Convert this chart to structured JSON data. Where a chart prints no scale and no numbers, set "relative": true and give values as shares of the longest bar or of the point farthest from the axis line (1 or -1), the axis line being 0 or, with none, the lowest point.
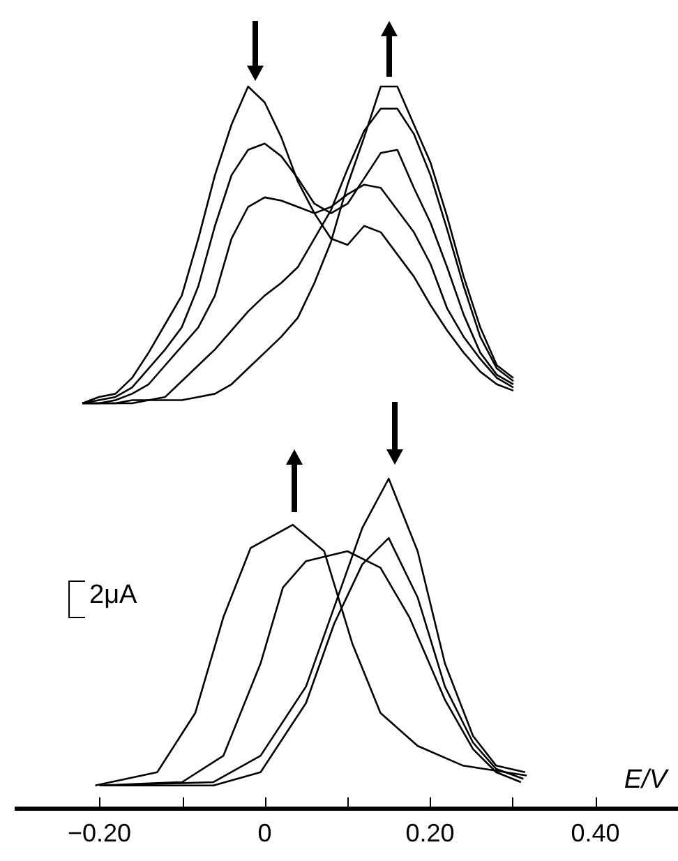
{
  "chart_data": [
    {
      "type": "line",
      "relative": true,
      "tick_labels": false,
      "categories": [
        null,
        null,
        null,
        null,
        null,
        null,
        null,
        null,
        null,
        null,
        null,
        null,
        null,
        null,
        null,
        null,
        null,
        null,
        null,
        null,
        null,
        null,
        null,
        null,
        null,
        null,
        null
      ],
      "series": [
        {
          "color": "#000000",
          "values": [
            0,
            0.02,
            0.03,
            0.08,
            0.16,
            0.25,
            0.34,
            0.52,
            0.72,
            0.88,
            1.0,
            0.95,
            0.84,
            0.7,
            0.6,
            0.52,
            0.5,
            0.56,
            0.54,
            0.47,
            0.4,
            0.31,
            0.23,
            0.16,
            0.1,
            0.06,
            0.04
          ]
        },
        {
          "color": "#000000",
          "values": [
            0,
            0.01,
            0.02,
            0.05,
            0.11,
            0.17,
            0.24,
            0.37,
            0.56,
            0.72,
            0.8,
            0.82,
            0.78,
            0.71,
            0.63,
            0.6,
            0.63,
            0.71,
            0.79,
            0.8,
            0.68,
            0.57,
            0.43,
            0.28,
            0.16,
            0.09,
            0.06
          ]
        },
        {
          "color": "#000000",
          "values": [
            0,
            0,
            0.01,
            0.03,
            0.06,
            0.12,
            0.18,
            0.24,
            0.34,
            0.52,
            0.62,
            0.65,
            0.64,
            0.62,
            0.6,
            0.62,
            0.66,
            0.69,
            0.68,
            0.61,
            0.54,
            0.44,
            0.3,
            0.21,
            0.14,
            0.08,
            0.05
          ]
        },
        {
          "color": "#000000",
          "values": [
            0,
            0,
            0,
            0,
            0.01,
            0.02,
            0.07,
            0.12,
            0.17,
            0.23,
            0.29,
            0.34,
            0.38,
            0.43,
            0.52,
            0.61,
            0.74,
            0.86,
            0.93,
            0.93,
            0.85,
            0.72,
            0.55,
            0.37,
            0.21,
            0.11,
            0.07
          ]
        },
        {
          "color": "#000000",
          "values": [
            0,
            0,
            0,
            0.01,
            0.01,
            0.01,
            0.01,
            0.02,
            0.03,
            0.06,
            0.11,
            0.16,
            0.21,
            0.27,
            0.38,
            0.51,
            0.69,
            0.84,
            1.0,
            1.0,
            0.88,
            0.76,
            0.59,
            0.4,
            0.24,
            0.12,
            0.08
          ]
        }
      ]
    },
    {
      "type": "line",
      "relative": true,
      "tick_labels": "x",
      "xlim": [
        -0.3,
        0.5
      ],
      "xlabel": "E/V",
      "xticks": [
        {
          "value": -0.2,
          "label": "−0.20"
        },
        {
          "value": -0.1,
          "label": null
        },
        0,
        {
          "value": 0.1,
          "label": null
        },
        {
          "value": 0.2,
          "label": "0.20"
        },
        {
          "value": 0.3,
          "label": null
        },
        {
          "value": 0.4,
          "label": "0.40"
        }
      ],
      "annotations": [
        "2μA"
      ],
      "series": [
        {
          "color": "#000000",
          "x": [
            -0.19,
            -0.062,
            -0.005,
            0.05,
            0.084,
            0.118,
            0.15,
            0.185,
            0.218,
            0.252,
            0.28,
            0.315
          ],
          "values": [
            0.07,
            0.08,
            0.16,
            0.37,
            0.61,
            0.85,
            1.0,
            0.78,
            0.44,
            0.22,
            0.13,
            0.11
          ]
        },
        {
          "color": "#000000",
          "x": [
            -0.195,
            -0.062,
            -0.005,
            0.05,
            0.084,
            0.118,
            0.15,
            0.185,
            0.218,
            0.252,
            0.28,
            0.313
          ],
          "values": [
            0.07,
            0.07,
            0.11,
            0.32,
            0.56,
            0.74,
            0.82,
            0.64,
            0.37,
            0.2,
            0.12,
            0.09
          ]
        },
        {
          "color": "#000000",
          "x": [
            -0.2,
            -0.1,
            -0.05,
            -0.005,
            0.022,
            0.05,
            0.1,
            0.14,
            0.175,
            0.218,
            0.252,
            0.28,
            0.31
          ],
          "values": [
            0.07,
            0.08,
            0.16,
            0.44,
            0.67,
            0.75,
            0.78,
            0.73,
            0.58,
            0.33,
            0.18,
            0.11,
            0.08
          ]
        },
        {
          "color": "#000000",
          "x": [
            -0.205,
            -0.13,
            -0.084,
            -0.05,
            -0.017,
            0.034,
            0.072,
            0.106,
            0.14,
            0.185,
            0.24,
            0.317
          ],
          "values": [
            0.07,
            0.11,
            0.29,
            0.58,
            0.79,
            0.86,
            0.78,
            0.5,
            0.29,
            0.19,
            0.13,
            0.1
          ]
        }
      ]
    }
  ]
}
